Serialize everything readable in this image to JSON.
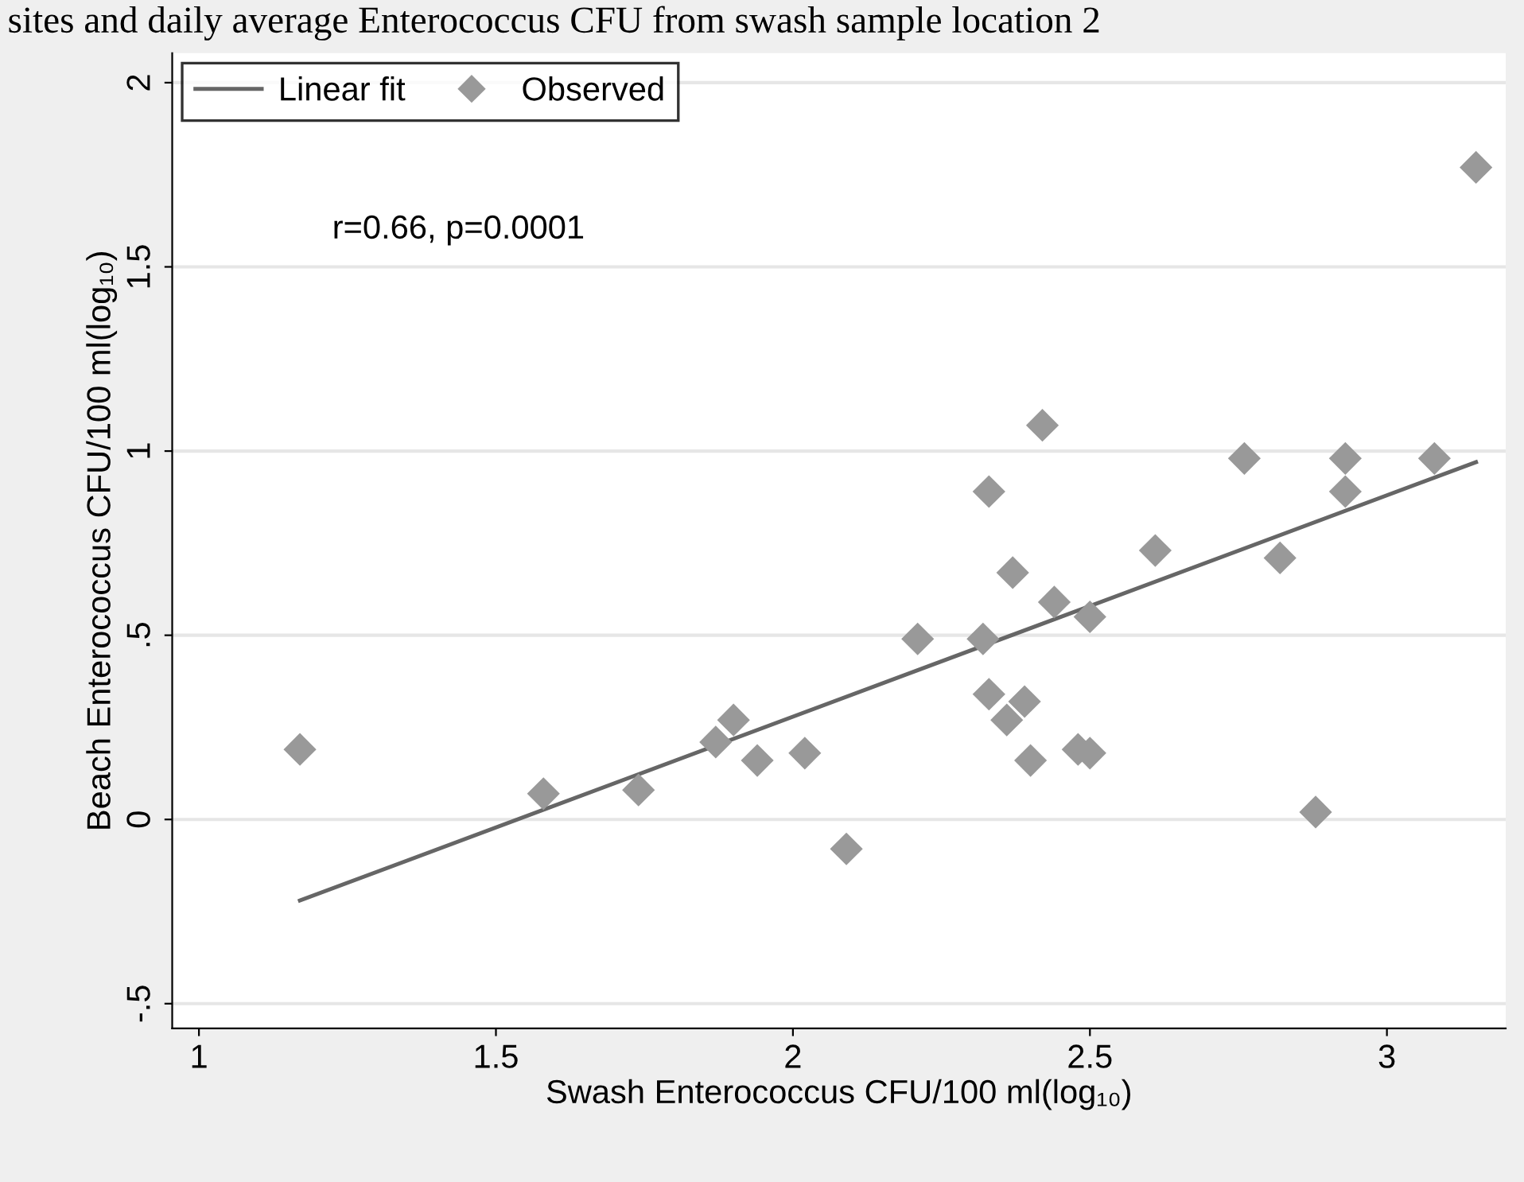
{
  "chart_data": {
    "type": "scatter",
    "title": "sites and daily average Enterococcus CFU from swash sample location 2",
    "xlabel": "Swash Enterococcus CFU/100 ml(log₁₀)",
    "ylabel": "Beach Enterococcus CFU/100 ml(log₁₀)",
    "annotations": [
      "r=0.66, p=0.0001"
    ],
    "series": [
      {
        "name": "Linear fit",
        "type": "line",
        "color": "#666666",
        "marker": "none",
        "x": [
          1.17,
          3.15
        ],
        "values": [
          -0.22,
          0.97
        ]
      },
      {
        "name": "Observed",
        "color": "#999999",
        "marker": "diamond",
        "x": [
          1.17,
          1.58,
          1.74,
          1.87,
          1.9,
          1.94,
          2.02,
          2.09,
          2.21,
          2.32,
          2.33,
          2.33,
          2.36,
          2.37,
          2.39,
          2.4,
          2.42,
          2.44,
          2.48,
          2.5,
          2.5,
          2.61,
          2.76,
          2.82,
          2.88,
          2.93,
          2.93,
          3.08,
          3.15
        ],
        "values": [
          0.19,
          0.07,
          0.08,
          0.21,
          0.27,
          0.16,
          0.18,
          -0.08,
          0.49,
          0.49,
          0.89,
          0.34,
          0.27,
          0.67,
          0.32,
          0.16,
          1.07,
          0.59,
          0.19,
          0.18,
          0.55,
          0.73,
          0.98,
          0.71,
          0.02,
          0.98,
          0.89,
          0.98,
          1.77
        ]
      }
    ],
    "xlim": [
      0.955,
      3.2
    ],
    "xticks": [
      1,
      1.5,
      2,
      2.5,
      3
    ],
    "ylim": [
      -0.567,
      2.08
    ],
    "yticks": [
      {
        "value": -0.5,
        "label": "-.5"
      },
      0,
      {
        "value": 0.5,
        "label": ".5"
      },
      1,
      1.5,
      2
    ],
    "grid": "y",
    "legend": "top left"
  }
}
